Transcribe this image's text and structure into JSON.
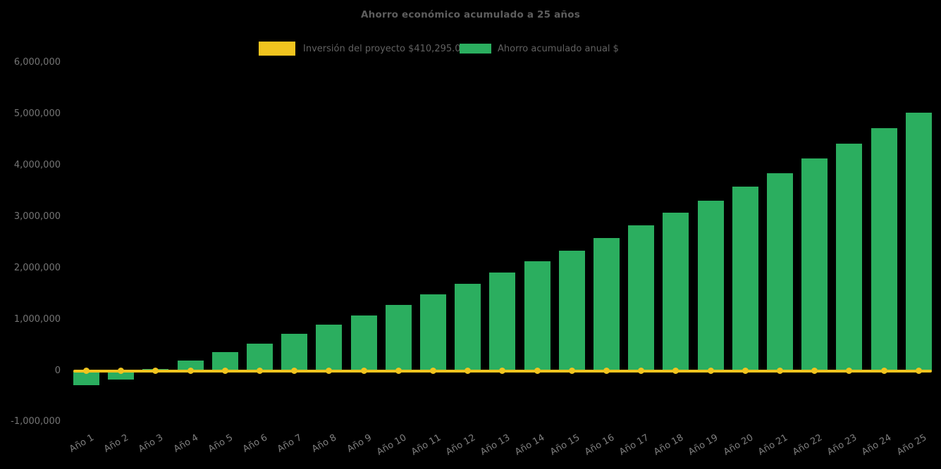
{
  "chart": {
    "title": "Ahorro económico acumulado a 25 años",
    "legend": {
      "investment": "Inversión del proyecto $410,295.00",
      "savings": "Ahorro acumulado anual $"
    }
  },
  "chart_data": {
    "type": "bar",
    "title": "Ahorro económico acumulado a 25 años",
    "background_color": "#000000",
    "grid": false,
    "legend_position": "top",
    "categories": [
      "Año 1",
      "Año 2",
      "Año 3",
      "Año 4",
      "Año 5",
      "Año 6",
      "Año 7",
      "Año 8",
      "Año 9",
      "Año 10",
      "Año 11",
      "Año 12",
      "Año 13",
      "Año 14",
      "Año 15",
      "Año 16",
      "Año 17",
      "Año 18",
      "Año 19",
      "Año 20",
      "Año 21",
      "Año 22",
      "Año 23",
      "Año 24",
      "Año 25"
    ],
    "y_axis": {
      "min": -1000000,
      "max": 6000000,
      "tick_step": 1000000,
      "tick_labels": [
        "6,000,000",
        "5,000,000",
        "4,000,000",
        "3,000,000",
        "2,000,000",
        "1,000,000",
        "0",
        "-1,000,000"
      ]
    },
    "series": [
      {
        "name": "Inversión del proyecto $410,295.00",
        "type": "line",
        "color": "#F0C41F",
        "marker": "circle",
        "investment_amount": 410295,
        "values": [
          0,
          0,
          0,
          0,
          0,
          0,
          0,
          0,
          0,
          0,
          0,
          0,
          0,
          0,
          0,
          0,
          0,
          0,
          0,
          0,
          0,
          0,
          0,
          0,
          0
        ]
      },
      {
        "name": "Ahorro acumulado anual $",
        "type": "bar",
        "color": "#2BAE5F",
        "values": [
          -275000,
          -170000,
          35000,
          200000,
          360000,
          530000,
          725000,
          900000,
          1075000,
          1285000,
          1485000,
          1700000,
          1910000,
          2135000,
          2345000,
          2580000,
          2830000,
          3080000,
          3315000,
          3585000,
          3850000,
          4135000,
          4425000,
          4730000,
          5025000
        ]
      }
    ],
    "text_colors": {
      "title": "#5e5e5e",
      "legend": "#616161",
      "y_ticks": "#757575",
      "x_ticks": "#7f7f7f"
    }
  }
}
